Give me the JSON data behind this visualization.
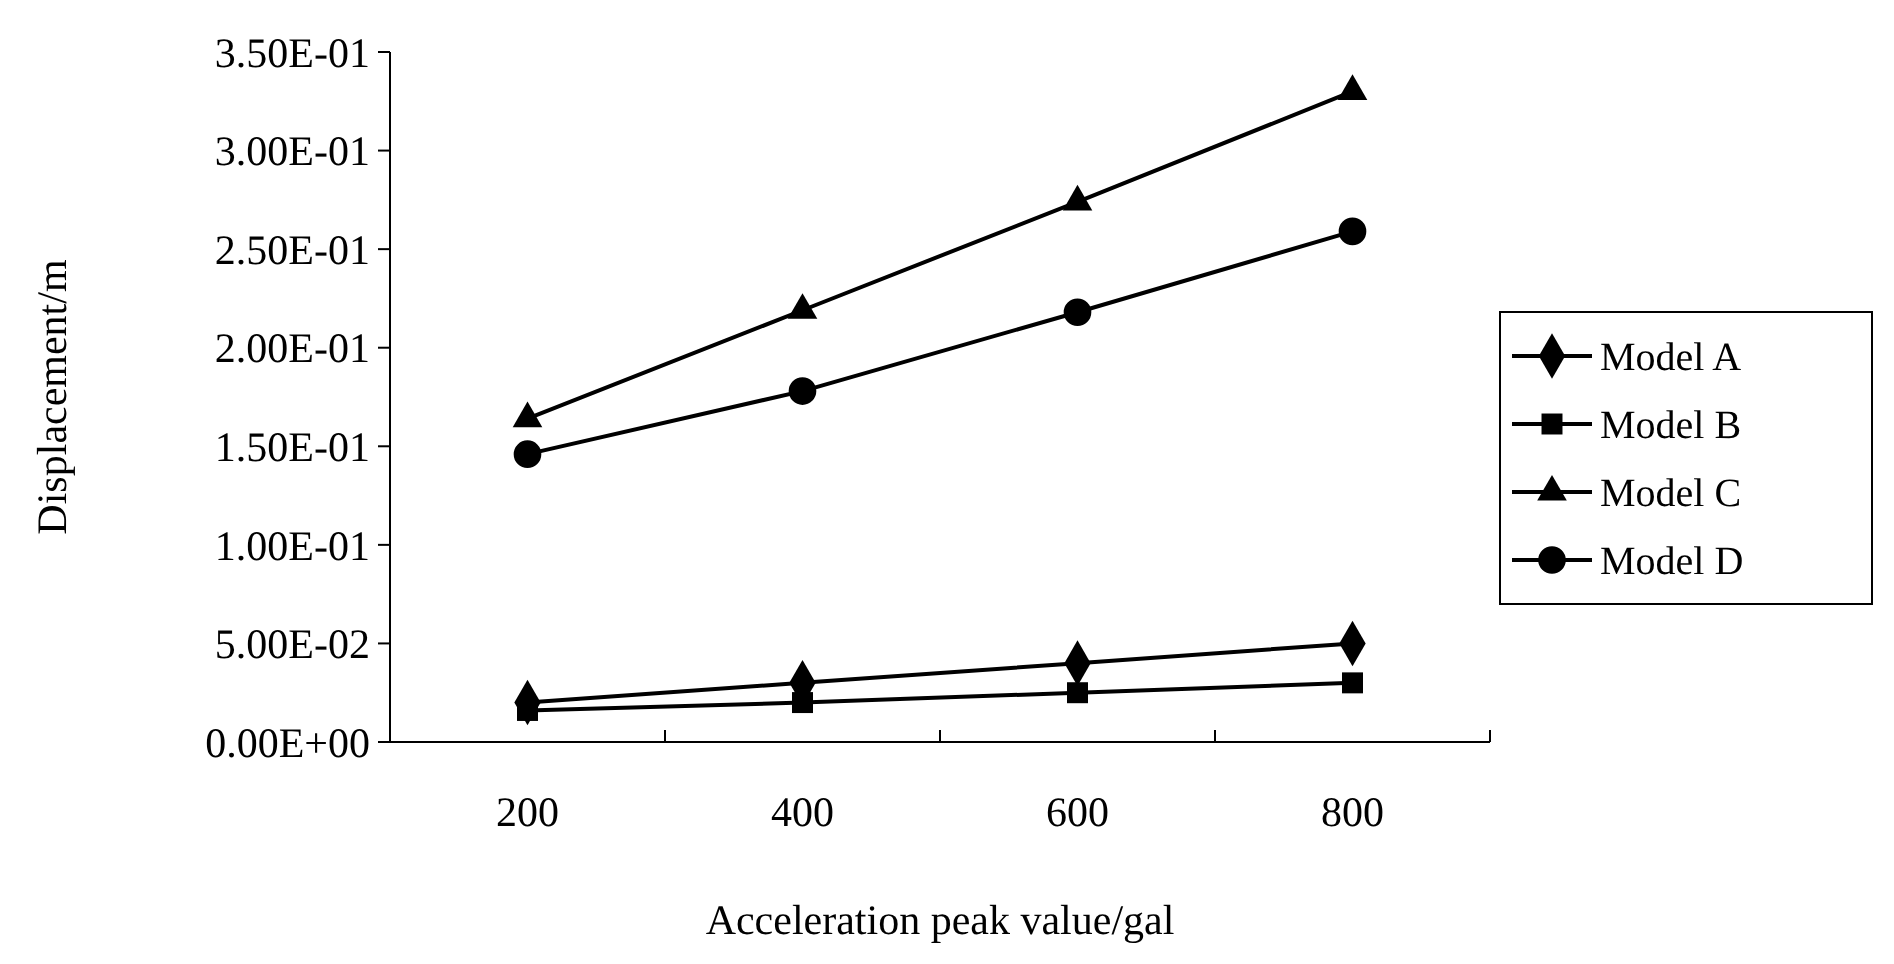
{
  "chart_data": {
    "type": "line",
    "xlabel": "Acceleration peak value/gal",
    "ylabel": "Displacement/m",
    "categories": [
      "200",
      "400",
      "600",
      "800"
    ],
    "ylim": [
      0,
      0.35
    ],
    "yticks": [
      {
        "value": 0,
        "label": "0.00E+00"
      },
      {
        "value": 0.05,
        "label": "5.00E-02"
      },
      {
        "value": 0.1,
        "label": "1.00E-01"
      },
      {
        "value": 0.15,
        "label": "1.50E-01"
      },
      {
        "value": 0.2,
        "label": "2.00E-01"
      },
      {
        "value": 0.25,
        "label": "2.50E-01"
      },
      {
        "value": 0.3,
        "label": "3.00E-01"
      },
      {
        "value": 0.35,
        "label": "3.50E-01"
      }
    ],
    "grid": false,
    "legend": "right",
    "line_style": "solid",
    "series": [
      {
        "name": "Model A",
        "color": "#000000",
        "marker": "diamond",
        "values": [
          0.02,
          0.03,
          0.04,
          0.05
        ]
      },
      {
        "name": "Model B",
        "color": "#000000",
        "marker": "square",
        "values": [
          0.016,
          0.02,
          0.025,
          0.03
        ]
      },
      {
        "name": "Model C",
        "color": "#000000",
        "marker": "triangle",
        "values": [
          0.164,
          0.219,
          0.274,
          0.33
        ]
      },
      {
        "name": "Model D",
        "color": "#000000",
        "marker": "circle",
        "values": [
          0.146,
          0.178,
          0.218,
          0.259
        ]
      }
    ]
  }
}
